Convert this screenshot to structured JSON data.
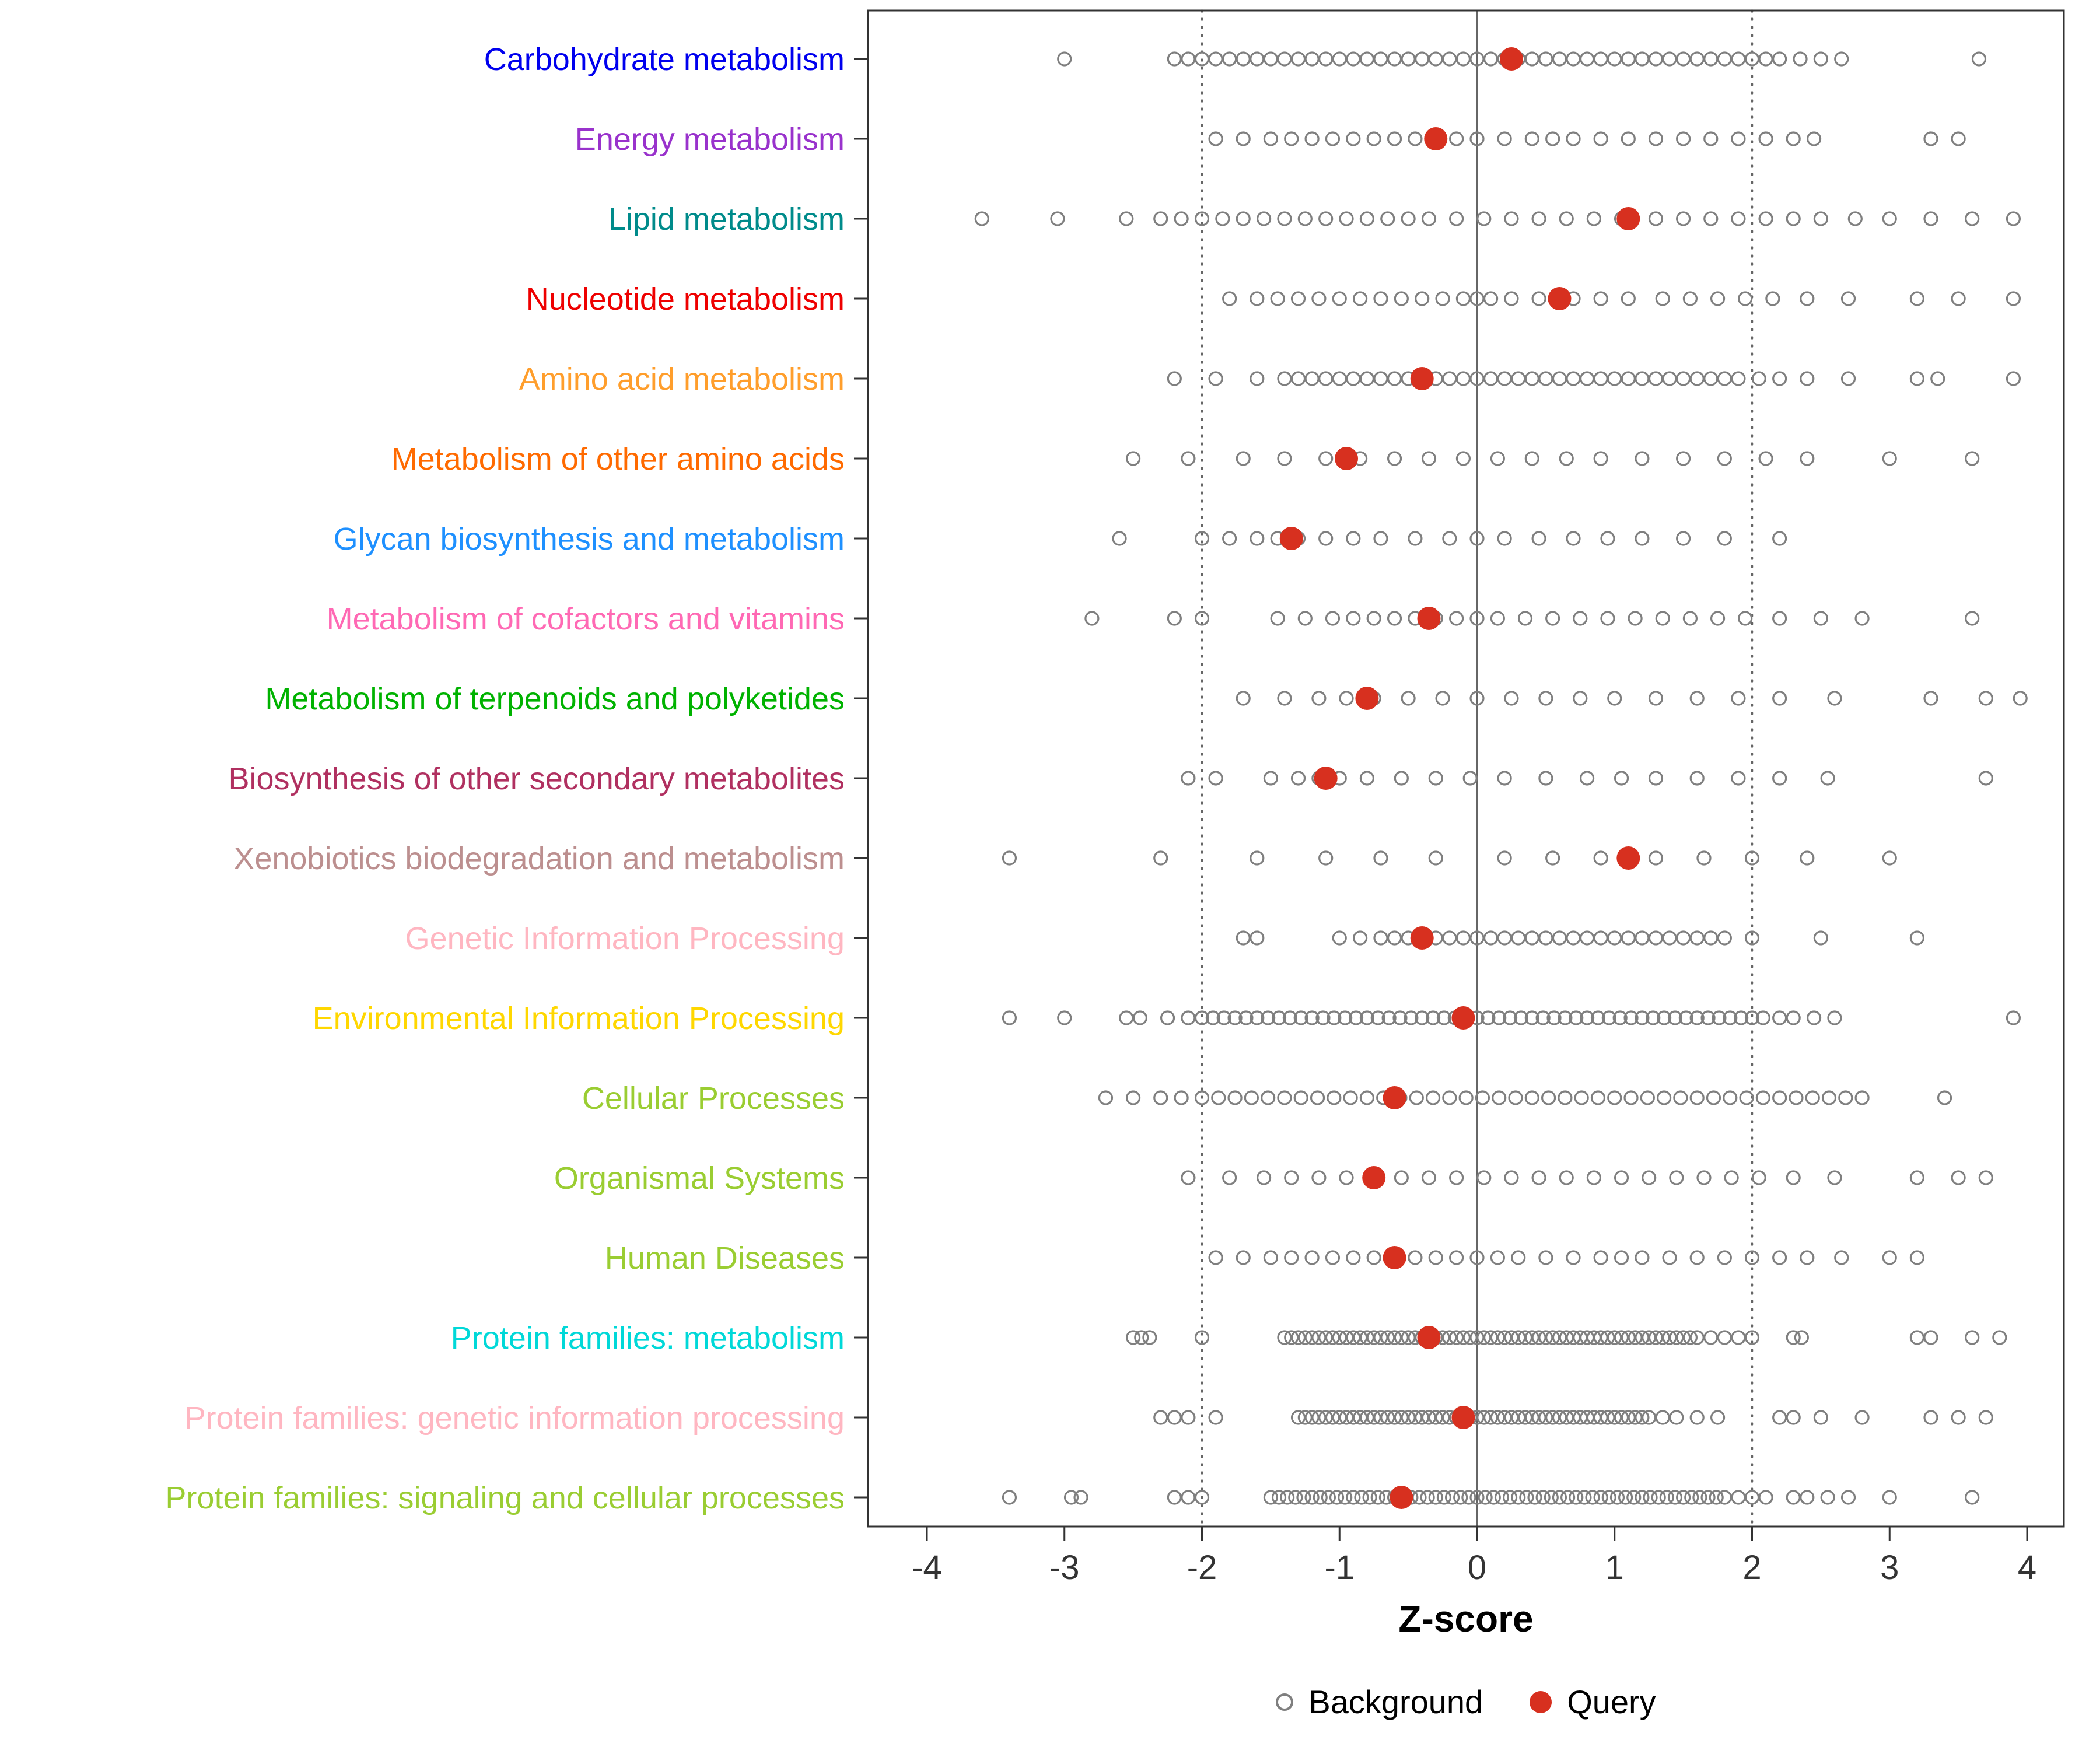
{
  "chart_data": {
    "type": "scatter",
    "title": "",
    "xlabel": "Z-score",
    "x_ticks": [
      -4,
      -3,
      -2,
      -1,
      0,
      1,
      2,
      3,
      4
    ],
    "xlim": [
      -4.4,
      4.3
    ],
    "grid": false,
    "legend_position": "bottom",
    "reference_lines": {
      "solid": [
        0
      ],
      "dotted": [
        -2,
        2
      ]
    },
    "legend": {
      "background_label": "Background",
      "query_label": "Query"
    },
    "colors": {
      "background_stroke": "#7f7f7f",
      "query_fill": "#d7301f",
      "axis_text": "#333333",
      "panel_border": "#333333",
      "ref_line": "#666666"
    },
    "rows": [
      {
        "label": "Carbohydrate metabolism",
        "color": "#0000EE",
        "query": 0.25,
        "background": [
          -3.0,
          2.0,
          2.1,
          2.2,
          2.35,
          2.5,
          2.65,
          3.65
        ],
        "bands": [
          [
            -2.2,
            1.9,
            0.1
          ]
        ]
      },
      {
        "label": "Energy metabolism",
        "color": "#9932CC",
        "query": -0.3,
        "background": [
          -1.9,
          -1.7,
          -1.5,
          -1.35,
          -1.2,
          -1.05,
          -0.9,
          -0.75,
          -0.6,
          -0.45,
          -0.3,
          -0.15,
          0.0,
          0.2,
          0.4,
          0.55,
          0.7,
          0.9,
          1.1,
          1.3,
          1.5,
          1.7,
          1.9,
          2.1,
          2.3,
          2.45,
          3.3,
          3.5
        ],
        "bands": []
      },
      {
        "label": "Lipid metabolism",
        "color": "#008B8B",
        "query": 1.1,
        "background": [
          -3.6,
          -3.05,
          -2.55,
          -2.3,
          -2.15,
          -2.0,
          -1.85,
          -1.7,
          -1.55,
          -1.4,
          -1.25,
          -1.1,
          -0.95,
          -0.8,
          -0.65,
          -0.5,
          -0.35,
          -0.15,
          0.05,
          0.25,
          0.45,
          0.65,
          0.85,
          1.05,
          1.3,
          1.5,
          1.7,
          1.9,
          2.1,
          2.3,
          2.5,
          2.75,
          3.0,
          3.3,
          3.6,
          3.9
        ],
        "bands": []
      },
      {
        "label": "Nucleotide metabolism",
        "color": "#EE0000",
        "query": 0.6,
        "background": [
          -1.8,
          -1.6,
          -1.45,
          -1.3,
          -1.15,
          -1.0,
          -0.85,
          -0.7,
          -0.55,
          -0.4,
          -0.25,
          -0.1,
          0.0,
          0.1,
          0.25,
          0.45,
          0.7,
          0.9,
          1.1,
          1.35,
          1.55,
          1.75,
          1.95,
          2.15,
          2.4,
          2.7,
          3.2,
          3.5,
          3.9
        ],
        "bands": []
      },
      {
        "label": "Amino acid metabolism",
        "color": "#FF9E2C",
        "query": -0.4,
        "background": [
          -2.2,
          -1.9,
          -1.6,
          2.05,
          2.2,
          2.4,
          2.7,
          3.2,
          3.35,
          3.9
        ],
        "bands": [
          [
            -1.4,
            1.95,
            0.1
          ]
        ]
      },
      {
        "label": "Metabolism of other amino acids",
        "color": "#FF6A00",
        "query": -0.95,
        "background": [
          -2.5,
          -2.1,
          -1.7,
          -1.4,
          -1.1,
          -0.85,
          -0.6,
          -0.35,
          -0.1,
          0.15,
          0.4,
          0.65,
          0.9,
          1.2,
          1.5,
          1.8,
          2.1,
          2.4,
          3.0,
          3.6
        ],
        "bands": []
      },
      {
        "label": "Glycan biosynthesis and metabolism",
        "color": "#1E90FF",
        "query": -1.35,
        "background": [
          -2.6,
          -2.0,
          -1.8,
          -1.6,
          -1.45,
          -1.3,
          -1.1,
          -0.9,
          -0.7,
          -0.45,
          -0.2,
          0.0,
          0.2,
          0.45,
          0.7,
          0.95,
          1.2,
          1.5,
          1.8,
          2.2
        ],
        "bands": []
      },
      {
        "label": "Metabolism of cofactors and vitamins",
        "color": "#FF69B4",
        "query": -0.35,
        "background": [
          -2.8,
          -2.2,
          -2.0,
          -1.45,
          -1.25,
          -1.05,
          -0.9,
          -0.75,
          -0.6,
          -0.45,
          -0.3,
          -0.15,
          0.0,
          0.15,
          0.35,
          0.55,
          0.75,
          0.95,
          1.15,
          1.35,
          1.55,
          1.75,
          1.95,
          2.2,
          2.5,
          2.8,
          3.6
        ],
        "bands": []
      },
      {
        "label": "Metabolism of terpenoids and polyketides",
        "color": "#00B200",
        "query": -0.8,
        "background": [
          -1.7,
          -1.4,
          -1.15,
          -0.95,
          -0.75,
          -0.5,
          -0.25,
          0.0,
          0.25,
          0.5,
          0.75,
          1.0,
          1.3,
          1.6,
          1.9,
          2.2,
          2.6,
          3.3,
          3.7,
          3.95
        ],
        "bands": []
      },
      {
        "label": "Biosynthesis of other secondary metabolites",
        "color": "#B03060",
        "query": -1.1,
        "background": [
          -2.1,
          -1.9,
          -1.5,
          -1.3,
          -1.15,
          -1.0,
          -0.8,
          -0.55,
          -0.3,
          -0.05,
          0.2,
          0.5,
          0.8,
          1.05,
          1.3,
          1.6,
          1.9,
          2.2,
          2.55,
          3.7
        ],
        "bands": []
      },
      {
        "label": "Xenobiotics biodegradation and metabolism",
        "color": "#BC8F8F",
        "query": 1.1,
        "background": [
          -3.4,
          -2.3,
          -1.6,
          -1.1,
          -0.7,
          -0.3,
          0.2,
          0.55,
          0.9,
          1.3,
          1.65,
          2.0,
          2.4,
          3.0
        ],
        "bands": []
      },
      {
        "label": "Genetic Information Processing",
        "color": "#FFB6C1",
        "query": -0.4,
        "background": [
          -1.7,
          -1.6,
          -1.0,
          -0.85,
          2.0,
          2.5,
          3.2
        ],
        "bands": [
          [
            -0.7,
            1.85,
            0.1
          ]
        ]
      },
      {
        "label": "Environmental Information Processing",
        "color": "#FFD700",
        "query": -0.1,
        "background": [
          -3.4,
          -3.0,
          -2.55,
          -2.45,
          -2.25,
          -2.1,
          2.2,
          2.3,
          2.45,
          2.6,
          3.9
        ],
        "bands": [
          [
            -2.0,
            2.1,
            0.08
          ]
        ]
      },
      {
        "label": "Cellular Processes",
        "color": "#9ACD32",
        "query": -0.6,
        "background": [
          -2.7,
          -2.5,
          -2.3,
          -2.15,
          3.4
        ],
        "bands": [
          [
            -2.0,
            2.85,
            0.12
          ]
        ]
      },
      {
        "label": "Organismal Systems",
        "color": "#9ACD32",
        "query": -0.75,
        "background": [
          -2.1,
          -1.8,
          -1.55,
          -1.35,
          -1.15,
          -0.95,
          -0.75,
          -0.55,
          -0.35,
          -0.15,
          0.05,
          0.25,
          0.45,
          0.65,
          0.85,
          1.05,
          1.25,
          1.45,
          1.65,
          1.85,
          2.05,
          2.3,
          2.6,
          3.2,
          3.5,
          3.7
        ],
        "bands": []
      },
      {
        "label": "Human Diseases",
        "color": "#9ACD32",
        "query": -0.6,
        "background": [
          -1.9,
          -1.7,
          -1.5,
          -1.35,
          -1.2,
          -1.05,
          -0.9,
          -0.75,
          -0.6,
          -0.45,
          -0.3,
          -0.15,
          0.0,
          0.15,
          0.3,
          0.5,
          0.7,
          0.9,
          1.05,
          1.2,
          1.4,
          1.6,
          1.8,
          2.0,
          2.2,
          2.4,
          2.65,
          3.0,
          3.2
        ],
        "bands": []
      },
      {
        "label": "Protein families: metabolism",
        "color": "#00D8D8",
        "query": -0.35,
        "background": [
          -2.5,
          -2.44,
          -2.38,
          -2.0,
          1.6,
          1.7,
          1.8,
          1.9,
          2.0,
          2.3,
          2.36,
          3.2,
          3.3,
          3.6,
          3.8
        ],
        "bands": [
          [
            -1.4,
            1.55,
            0.05
          ]
        ]
      },
      {
        "label": "Protein families: genetic information processing",
        "color": "#FFB6C1",
        "query": -0.1,
        "background": [
          -2.3,
          -2.2,
          -2.1,
          -1.9,
          1.35,
          1.45,
          1.6,
          1.75,
          2.2,
          2.3,
          2.5,
          2.8,
          3.3,
          3.5,
          3.7
        ],
        "bands": [
          [
            -1.3,
            1.25,
            0.05
          ]
        ]
      },
      {
        "label": "Protein families: signaling and cellular processes",
        "color": "#9ACD32",
        "query": -0.55,
        "background": [
          -3.4,
          -2.95,
          -2.88,
          -2.2,
          -2.1,
          -2.0,
          1.9,
          2.0,
          2.1,
          2.3,
          2.4,
          2.55,
          2.7,
          3.0,
          3.6
        ],
        "bands": [
          [
            -1.5,
            1.8,
            0.06
          ]
        ]
      }
    ]
  }
}
